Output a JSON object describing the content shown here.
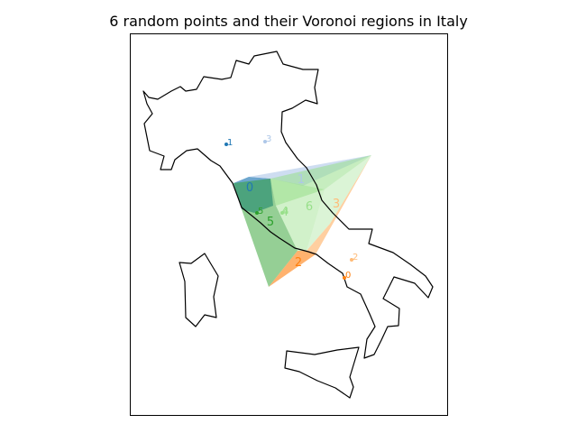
{
  "title": "6 random points and their Voronoi regions in Italy",
  "points": [
    {
      "label": "1",
      "color": "#1f77b4"
    },
    {
      "label": "3",
      "color": "#aec7e8"
    },
    {
      "label": "5",
      "color": "#2ca02c"
    },
    {
      "label": "4",
      "color": "#98df8a"
    },
    {
      "label": "2",
      "color": "#ffbb78"
    },
    {
      "label": "0",
      "color": "#ff7f0e"
    }
  ],
  "regions": [
    {
      "label": "0",
      "color": "#1f77b4"
    },
    {
      "label": "1",
      "color": "#aec7e8"
    },
    {
      "label": "5",
      "color": "#2ca02c"
    },
    {
      "label": "4",
      "color": "#98df8a"
    },
    {
      "label": "6",
      "color": "#98df8a"
    },
    {
      "label": "3",
      "color": "#ffbb78"
    },
    {
      "label": "2",
      "color": "#ff7f0e"
    }
  ]
}
